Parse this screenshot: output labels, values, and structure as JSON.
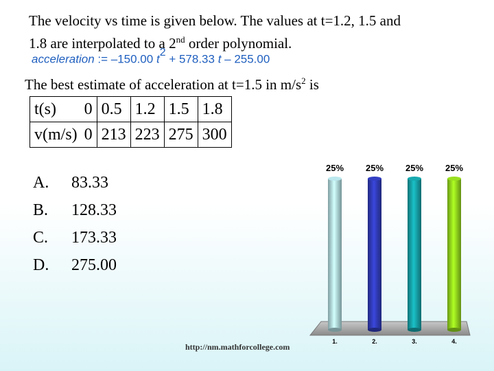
{
  "slide": {
    "title_line1": "The velocity vs time is given below.  The values at t=1.2, 1.5 and",
    "title_line2_a": "1.8 are interpolated to a 2",
    "title_line2_sup": "nd",
    "title_line2_b": " order polynomial.",
    "formula_lhs": "acceleration",
    "formula_assign": " := –150.00 ",
    "formula_t1": "t",
    "formula_exp": "2",
    "formula_mid": " + 578.33 ",
    "formula_t2": "t",
    "formula_end": " – 255.00",
    "question_a": "The best estimate of acceleration at t=1.5 in m/s",
    "question_sup": "2",
    "question_b": " is",
    "footer": "http://nm.mathforcollege.com"
  },
  "table": {
    "row1_label": "t(s)",
    "row1": [
      "0",
      "0.5",
      "1.2",
      "1.5",
      "1.8"
    ],
    "row2_label": "v(m/s)",
    "row2": [
      "0",
      "213",
      "223",
      "275",
      "300"
    ]
  },
  "options": [
    {
      "letter": "A.",
      "value": "83.33"
    },
    {
      "letter": "B.",
      "value": "128.33"
    },
    {
      "letter": "C.",
      "value": "173.33"
    },
    {
      "letter": "D.",
      "value": "275.00"
    }
  ],
  "chart_data": {
    "type": "bar",
    "categories": [
      "1.",
      "2.",
      "3.",
      "4."
    ],
    "values": [
      25,
      25,
      25,
      25
    ],
    "data_labels": [
      "25%",
      "25%",
      "25%",
      "25%"
    ],
    "colors": [
      "#a9d3d8",
      "#2e39b0",
      "#159aa0",
      "#8ccc1c"
    ],
    "ylim": [
      0,
      25
    ]
  }
}
